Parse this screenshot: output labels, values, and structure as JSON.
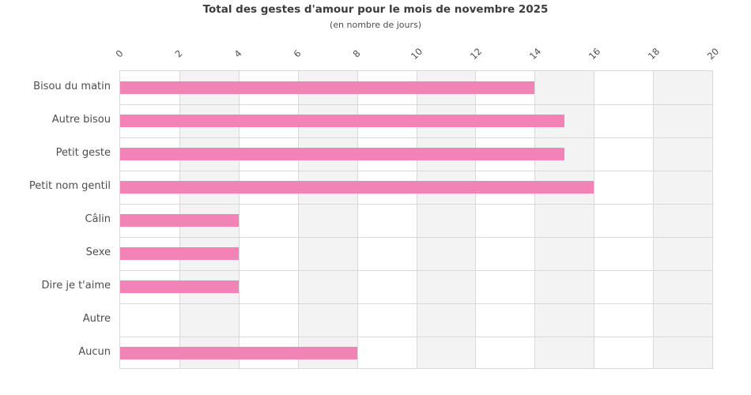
{
  "chart_data": {
    "type": "bar",
    "orientation": "horizontal",
    "title": "Total des gestes d'amour pour le mois de novembre 2025",
    "subtitle": "(en nombre de jours)",
    "categories": [
      "Bisou du matin",
      "Autre bisou",
      "Petit geste",
      "Petit nom gentil",
      "Câlin",
      "Sexe",
      "Dire je t'aime",
      "Autre",
      "Aucun"
    ],
    "values": [
      14,
      15,
      15,
      16,
      4,
      4,
      4,
      0,
      8
    ],
    "x_ticks": [
      0,
      2,
      4,
      6,
      8,
      10,
      12,
      14,
      16,
      18,
      20
    ],
    "xlim": [
      0,
      20
    ],
    "xlabel": "",
    "ylabel": "",
    "legend": false,
    "grid": true,
    "tick_rotation": -45,
    "colors": {
      "bar": "#f183b7",
      "band": "#f3f3f3",
      "grid": "#d9d9d9",
      "title_text": "#3d3d3d",
      "label_text": "#4d4d4d"
    }
  }
}
